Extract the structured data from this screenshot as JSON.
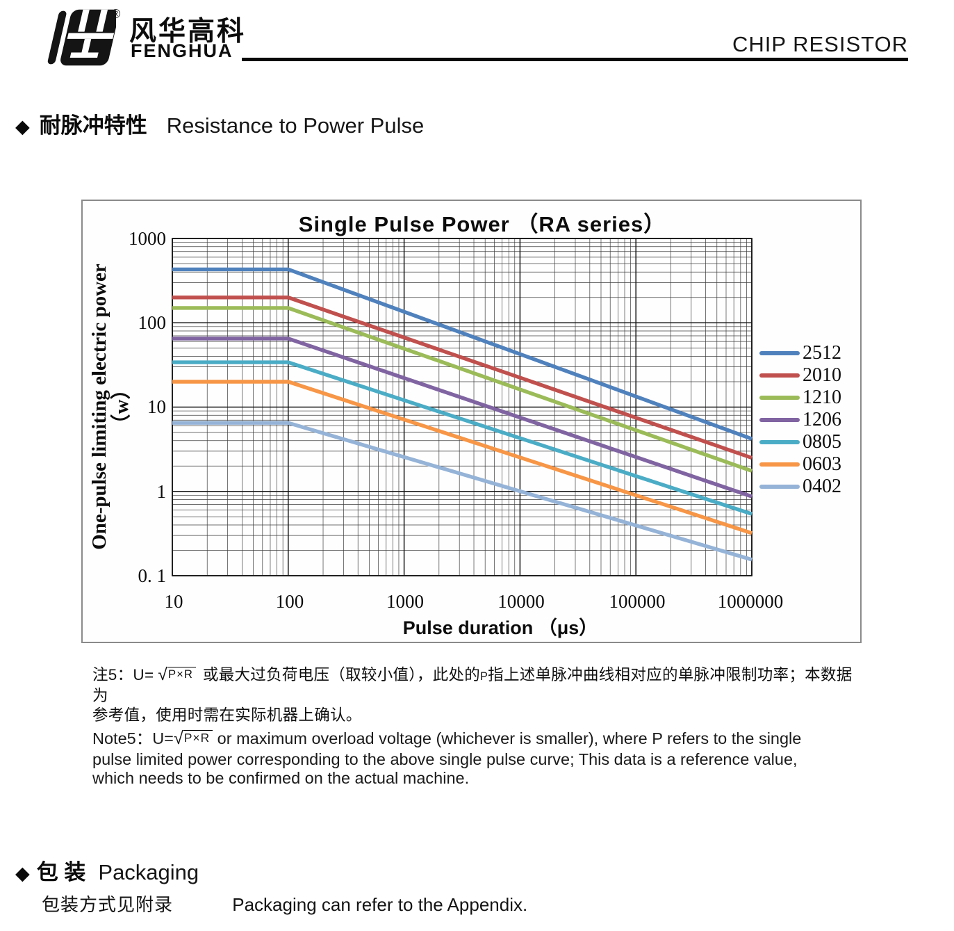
{
  "header": {
    "brand_cn": "风华高科",
    "brand_en": "FENGHUA",
    "registered_mark": "®",
    "doc_title": "CHIP RESISTOR"
  },
  "pulse_section": {
    "bullet": "◆",
    "title_cn": "耐脉冲特性",
    "title_en": "Resistance to Power Pulse"
  },
  "chart_data": {
    "type": "line",
    "title": "Single Pulse Power （RA series）",
    "xlabel": "Pulse duration （μs）",
    "ylabel": "One-pulse limiting electric power",
    "ylabel_unit": "（w）",
    "x_scale": "log",
    "y_scale": "log",
    "xlim": [
      10,
      1000000
    ],
    "ylim": [
      0.1,
      1000
    ],
    "x_ticks": [
      "10",
      "100",
      "1000",
      "10000",
      "100000",
      "1000000"
    ],
    "y_ticks": [
      "1000",
      "100",
      "10",
      "1",
      "0. 1"
    ],
    "grid": "log major and minor gridlines on both axes",
    "legend_position": "right",
    "series": [
      {
        "name": "2512",
        "color": "#4F81BD",
        "points": [
          [
            10,
            430
          ],
          [
            100,
            430
          ],
          [
            1000000,
            4.2
          ]
        ]
      },
      {
        "name": "2010",
        "color": "#C0504D",
        "points": [
          [
            10,
            200
          ],
          [
            100,
            200
          ],
          [
            1000000,
            2.5
          ]
        ]
      },
      {
        "name": "1210",
        "color": "#9BBB59",
        "points": [
          [
            10,
            150
          ],
          [
            100,
            150
          ],
          [
            1000000,
            1.75
          ]
        ]
      },
      {
        "name": "1206",
        "color": "#8064A2",
        "points": [
          [
            10,
            65
          ],
          [
            100,
            65
          ],
          [
            1000000,
            0.87
          ]
        ]
      },
      {
        "name": "0805",
        "color": "#4BACC6",
        "points": [
          [
            10,
            34
          ],
          [
            100,
            34
          ],
          [
            1000000,
            0.54
          ]
        ]
      },
      {
        "name": "0603",
        "color": "#F79646",
        "points": [
          [
            10,
            20
          ],
          [
            100,
            20
          ],
          [
            1000000,
            0.32
          ]
        ]
      },
      {
        "name": "0402",
        "color": "#95B3D7",
        "points": [
          [
            10,
            6.5
          ],
          [
            100,
            6.5
          ],
          [
            1000000,
            0.155
          ]
        ]
      }
    ]
  },
  "notes": {
    "cn_prefix": "注5：U=",
    "cn_radical_sign": "√",
    "cn_radicand": "P×R",
    "cn_mid": "或最大过负荷电压（取较小值），此处的",
    "cn_small_p": "P",
    "cn_tail": "指上述单脉冲曲线相对应的单脉冲限制功率；本数据为",
    "cn_line2": "参考值，使用时需在实际机器上确认。",
    "en_prefix": "Note5：U=",
    "en_radical_sign": "√",
    "en_radicand": "P×R",
    "en_line1_rest": " or maximum overload voltage (whichever is smaller), where P refers to the single",
    "en_line2": "pulse limited power corresponding to the above single pulse curve; This data is a reference value,",
    "en_line3": "which needs to be confirmed on the actual machine."
  },
  "packaging_section": {
    "bullet": "◆",
    "title_cn": "包 装",
    "title_en": "Packaging",
    "body_cn": "包装方式见附录",
    "body_en": "Packaging can refer to the Appendix."
  }
}
